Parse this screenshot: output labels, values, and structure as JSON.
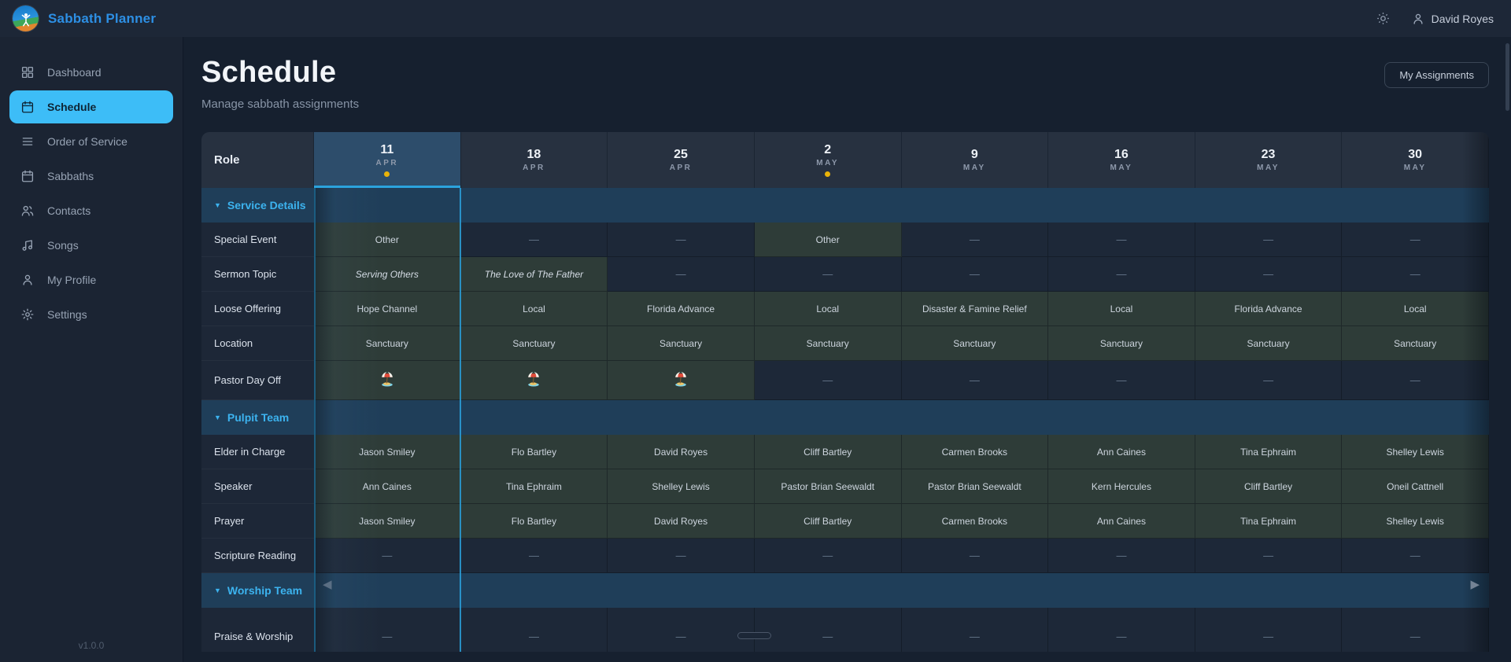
{
  "app": {
    "title": "Sabbath Planner",
    "version": "v1.0.0",
    "user": "David Royes"
  },
  "sidebar": {
    "items": [
      {
        "id": "dashboard",
        "label": "Dashboard",
        "icon": "dashboard-grid-icon",
        "active": false
      },
      {
        "id": "schedule",
        "label": "Schedule",
        "icon": "calendar-icon",
        "active": true
      },
      {
        "id": "order-of-service",
        "label": "Order of Service",
        "icon": "list-icon",
        "active": false
      },
      {
        "id": "sabbaths",
        "label": "Sabbaths",
        "icon": "calendar-icon",
        "active": false
      },
      {
        "id": "contacts",
        "label": "Contacts",
        "icon": "people-icon",
        "active": false
      },
      {
        "id": "songs",
        "label": "Songs",
        "icon": "music-note-icon",
        "active": false
      },
      {
        "id": "my-profile",
        "label": "My Profile",
        "icon": "person-icon",
        "active": false
      },
      {
        "id": "settings",
        "label": "Settings",
        "icon": "gear-icon",
        "active": false
      }
    ]
  },
  "page": {
    "title": "Schedule",
    "subtitle": "Manage sabbath assignments",
    "action_label": "My Assignments"
  },
  "schedule": {
    "role_header": "Role",
    "empty_marker": "—",
    "columns": [
      {
        "day": "11",
        "month": "APR",
        "selected": true,
        "dot": true
      },
      {
        "day": "18",
        "month": "APR",
        "selected": false,
        "dot": false
      },
      {
        "day": "25",
        "month": "APR",
        "selected": false,
        "dot": false
      },
      {
        "day": "2",
        "month": "MAY",
        "selected": false,
        "dot": true
      },
      {
        "day": "9",
        "month": "MAY",
        "selected": false,
        "dot": false
      },
      {
        "day": "16",
        "month": "MAY",
        "selected": false,
        "dot": false
      },
      {
        "day": "23",
        "month": "MAY",
        "selected": false,
        "dot": false
      },
      {
        "day": "30",
        "month": "MAY",
        "selected": false,
        "dot": false
      }
    ],
    "sections": [
      {
        "title": "Service Details",
        "rows": [
          {
            "label": "Special Event",
            "cells": [
              "Other",
              null,
              null,
              "Other",
              null,
              null,
              null,
              null
            ]
          },
          {
            "label": "Sermon Topic",
            "style": "italic",
            "cells": [
              "Serving Others",
              "The Love of The Father",
              null,
              null,
              null,
              null,
              null,
              null
            ]
          },
          {
            "label": "Loose Offering",
            "cells": [
              "Hope Channel",
              "Local",
              "Florida Advance",
              "Local",
              "Disaster & Famine Relief",
              "Local",
              "Florida Advance",
              "Local"
            ]
          },
          {
            "label": "Location",
            "cells": [
              "Sanctuary",
              "Sanctuary",
              "Sanctuary",
              "Sanctuary",
              "Sanctuary",
              "Sanctuary",
              "Sanctuary",
              "Sanctuary"
            ]
          },
          {
            "label": "Pastor Day Off",
            "type": "day-off",
            "icon": "beach-umbrella-icon",
            "cells": [
              "day-off",
              "day-off",
              "day-off",
              null,
              null,
              null,
              null,
              null
            ]
          }
        ]
      },
      {
        "title": "Pulpit Team",
        "rows": [
          {
            "label": "Elder in Charge",
            "cells": [
              "Jason Smiley",
              "Flo Bartley",
              "David Royes",
              "Cliff Bartley",
              "Carmen Brooks",
              "Ann Caines",
              "Tina Ephraim",
              "Shelley Lewis"
            ]
          },
          {
            "label": "Speaker",
            "cells": [
              "Ann Caines",
              "Tina Ephraim",
              "Shelley Lewis",
              "Pastor Brian Seewaldt",
              "Pastor Brian Seewaldt",
              "Kern Hercules",
              "Cliff Bartley",
              "Oneil Cattnell"
            ]
          },
          {
            "label": "Prayer",
            "cells": [
              "Jason Smiley",
              "Flo Bartley",
              "David Royes",
              "Cliff Bartley",
              "Carmen Brooks",
              "Ann Caines",
              "Tina Ephraim",
              "Shelley Lewis"
            ]
          },
          {
            "label": "Scripture Reading",
            "cells": [
              null,
              null,
              null,
              null,
              null,
              null,
              null,
              null
            ]
          }
        ]
      },
      {
        "title": "Worship Team",
        "rows": [
          {
            "label": "Praise & Worship",
            "cells": [
              null,
              null,
              null,
              null,
              null,
              null,
              null,
              null
            ]
          }
        ]
      }
    ]
  },
  "colors": {
    "accent": "#3dbdf7",
    "brand": "#2d8fe4",
    "selected_column": "#2ba3dd",
    "event_dot": "#eab308",
    "filled_cell": "#2e3c38",
    "section_band": "#1f3e59"
  }
}
